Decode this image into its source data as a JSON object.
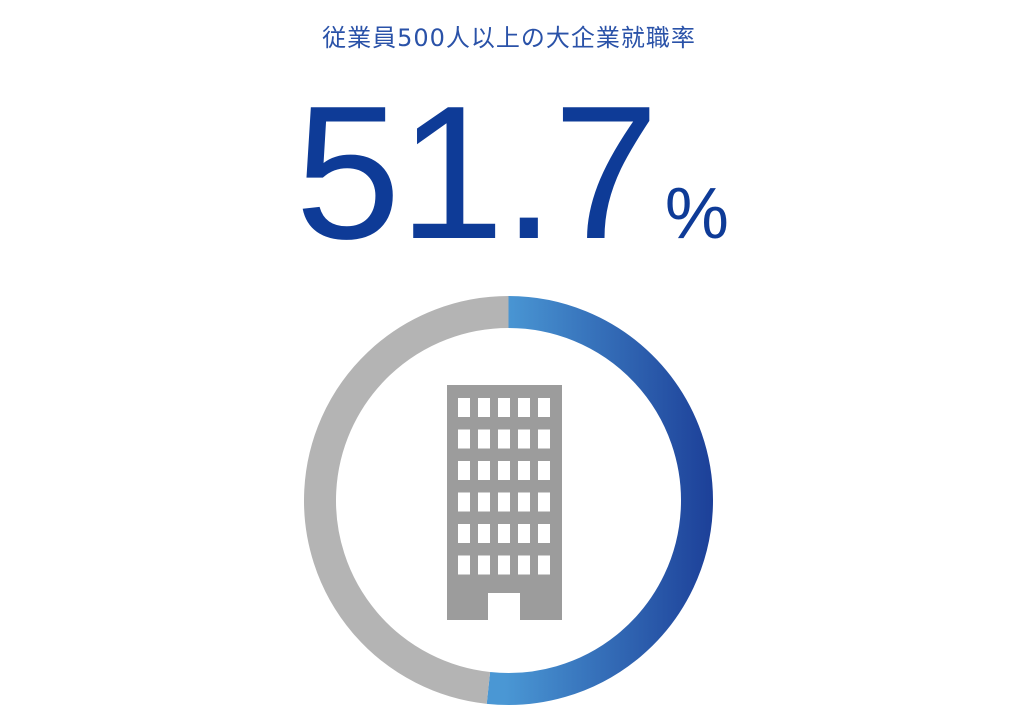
{
  "chart_data": {
    "type": "pie",
    "title": "従業員500人以上の大企業就職率",
    "value": "51.7",
    "unit": "%",
    "values": [
      51.7,
      48.3
    ],
    "colors": {
      "filled_start": "#4a97d4",
      "filled_end": "#1c3f98",
      "remainder": "#b4b4b4",
      "icon": "#9c9c9c"
    },
    "icon": "office-building-icon"
  }
}
